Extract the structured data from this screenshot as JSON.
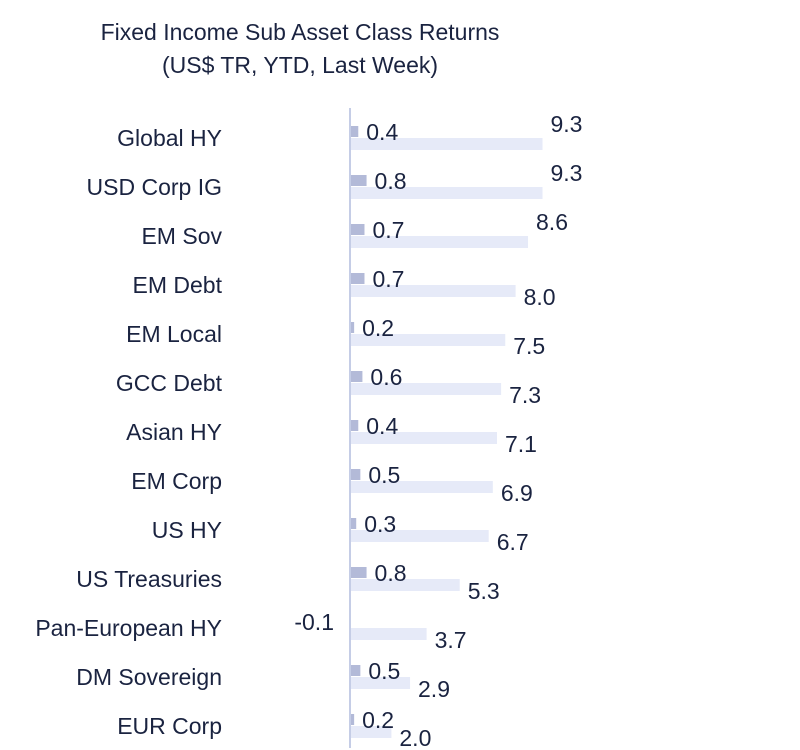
{
  "chart_data": {
    "type": "bar",
    "orientation": "horizontal",
    "title": "Fixed Income Sub Asset Class Returns",
    "subtitle": "(US$ TR, YTD, Last Week)",
    "categories": [
      "Global HY",
      "USD Corp IG",
      "EM Sov",
      "EM Debt",
      "EM Local",
      "GCC Debt",
      "Asian HY",
      "EM Corp",
      "US HY",
      "US Treasuries",
      "Pan-European HY",
      "DM Sovereign",
      "EUR Corp"
    ],
    "series": [
      {
        "values": [
          9.3,
          9.3,
          8.6,
          8.0,
          7.5,
          7.3,
          7.1,
          6.9,
          6.7,
          5.3,
          3.7,
          2.9,
          2.0
        ],
        "color": "#e6eaf8"
      },
      {
        "values": [
          0.4,
          0.8,
          0.7,
          0.7,
          0.2,
          0.6,
          0.4,
          0.5,
          0.3,
          0.8,
          -0.1,
          0.5,
          0.2
        ],
        "color": "#b3bad8"
      }
    ],
    "value_labels": {
      "ytd": [
        "9.3",
        "9.3",
        "8.6",
        "8.0",
        "7.5",
        "7.3",
        "7.1",
        "6.9",
        "6.7",
        "5.3",
        "3.7",
        "2.9",
        "2.0"
      ],
      "week": [
        "0.4",
        "0.8",
        "0.7",
        "0.7",
        "0.2",
        "0.6",
        "0.4",
        "0.5",
        "0.3",
        "0.8",
        "-0.1",
        "0.5",
        "0.2"
      ]
    },
    "axis_color": "#c5cde6",
    "grid": false,
    "legend": false
  }
}
